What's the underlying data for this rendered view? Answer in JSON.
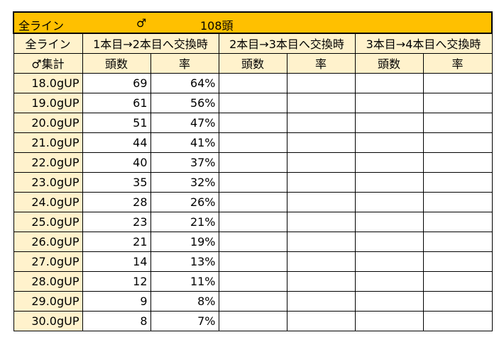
{
  "title": {
    "line": "全ライン",
    "sex": "♂",
    "count": "108頭"
  },
  "corner": {
    "top": "全ライン",
    "bottom": "♂集計"
  },
  "groups": [
    "1本目→2本目へ交換時",
    "2本目→3本目へ交換時",
    "3本目→4本目へ交換時"
  ],
  "subheaders": {
    "count": "頭数",
    "rate": "率"
  },
  "rows": [
    {
      "label": "18.0gUP",
      "count": "69",
      "rate": "64%"
    },
    {
      "label": "19.0gUP",
      "count": "61",
      "rate": "56%"
    },
    {
      "label": "20.0gUP",
      "count": "51",
      "rate": "47%"
    },
    {
      "label": "21.0gUP",
      "count": "44",
      "rate": "41%"
    },
    {
      "label": "22.0gUP",
      "count": "40",
      "rate": "37%"
    },
    {
      "label": "23.0gUP",
      "count": "35",
      "rate": "32%"
    },
    {
      "label": "24.0gUP",
      "count": "28",
      "rate": "26%"
    },
    {
      "label": "25.0gUP",
      "count": "23",
      "rate": "21%"
    },
    {
      "label": "26.0gUP",
      "count": "21",
      "rate": "19%"
    },
    {
      "label": "27.0gUP",
      "count": "14",
      "rate": "13%"
    },
    {
      "label": "28.0gUP",
      "count": "12",
      "rate": "11%"
    },
    {
      "label": "29.0gUP",
      "count": "9",
      "rate": "8%"
    },
    {
      "label": "30.0gUP",
      "count": "8",
      "rate": "7%"
    }
  ],
  "colors": {
    "title_bg": "#ffc000",
    "header_bg": "#fff2cc",
    "border": "#000000"
  }
}
